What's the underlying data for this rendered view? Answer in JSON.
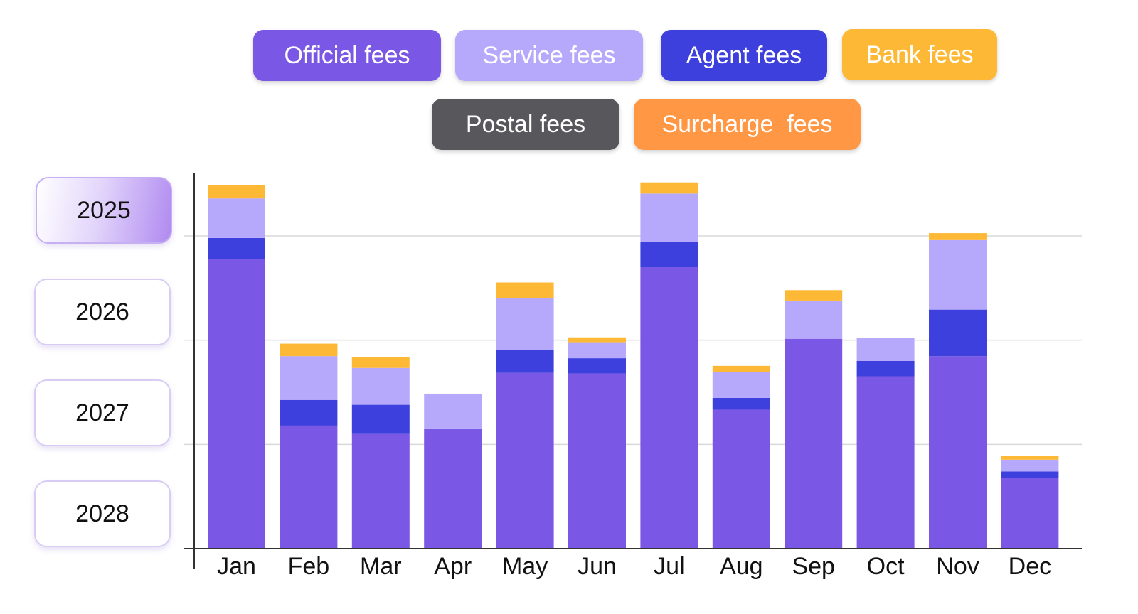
{
  "legend": [
    {
      "label": "Official fees",
      "color": "#7a57e4"
    },
    {
      "label": "Service fees",
      "color": "#b6a9fb"
    },
    {
      "label": "Agent fees",
      "color": "#3d40dc"
    },
    {
      "label": "Bank fees",
      "color": "#fdb935"
    },
    {
      "label": "Postal fees",
      "color": "#58585c"
    },
    {
      "label": "Surcharge  fees",
      "color": "#ff9744"
    }
  ],
  "years": {
    "items": [
      "2025",
      "2026",
      "2027",
      "2028"
    ],
    "selected": "2025"
  },
  "chart_data": {
    "type": "bar",
    "stacked": true,
    "categories": [
      "Jan",
      "Feb",
      "Mar",
      "Apr",
      "May",
      "Jun",
      "Jul",
      "Aug",
      "Sep",
      "Oct",
      "Nov",
      "Dec"
    ],
    "series": [
      {
        "name": "Official fees",
        "color": "#7a57e4",
        "values": [
          4.17,
          1.77,
          1.65,
          1.73,
          2.53,
          2.52,
          4.05,
          2.0,
          3.02,
          2.48,
          2.77,
          1.02
        ]
      },
      {
        "name": "Agent fees",
        "color": "#3d40dc",
        "values": [
          0.3,
          0.37,
          0.42,
          0.0,
          0.33,
          0.22,
          0.36,
          0.17,
          0.0,
          0.22,
          0.67,
          0.09
        ]
      },
      {
        "name": "Service fees",
        "color": "#b6a9fb",
        "values": [
          0.57,
          0.63,
          0.53,
          0.5,
          0.75,
          0.23,
          0.7,
          0.37,
          0.55,
          0.33,
          1.0,
          0.17
        ]
      },
      {
        "name": "Bank fees",
        "color": "#fdb935",
        "values": [
          0.19,
          0.18,
          0.16,
          0.0,
          0.22,
          0.07,
          0.16,
          0.09,
          0.15,
          0.0,
          0.1,
          0.05
        ]
      },
      {
        "name": "Postal fees",
        "color": "#58585c",
        "values": [
          0,
          0,
          0,
          0,
          0,
          0,
          0,
          0,
          0,
          0,
          0,
          0
        ]
      },
      {
        "name": "Surcharge  fees",
        "color": "#ff9744",
        "values": [
          0,
          0,
          0,
          0,
          0,
          0,
          0,
          0,
          0,
          0,
          0,
          0
        ]
      }
    ],
    "ylim": [
      0,
      5.4
    ],
    "grid": true,
    "gridlines": [
      1.5,
      3.0,
      4.5
    ],
    "legend_position": "top"
  }
}
